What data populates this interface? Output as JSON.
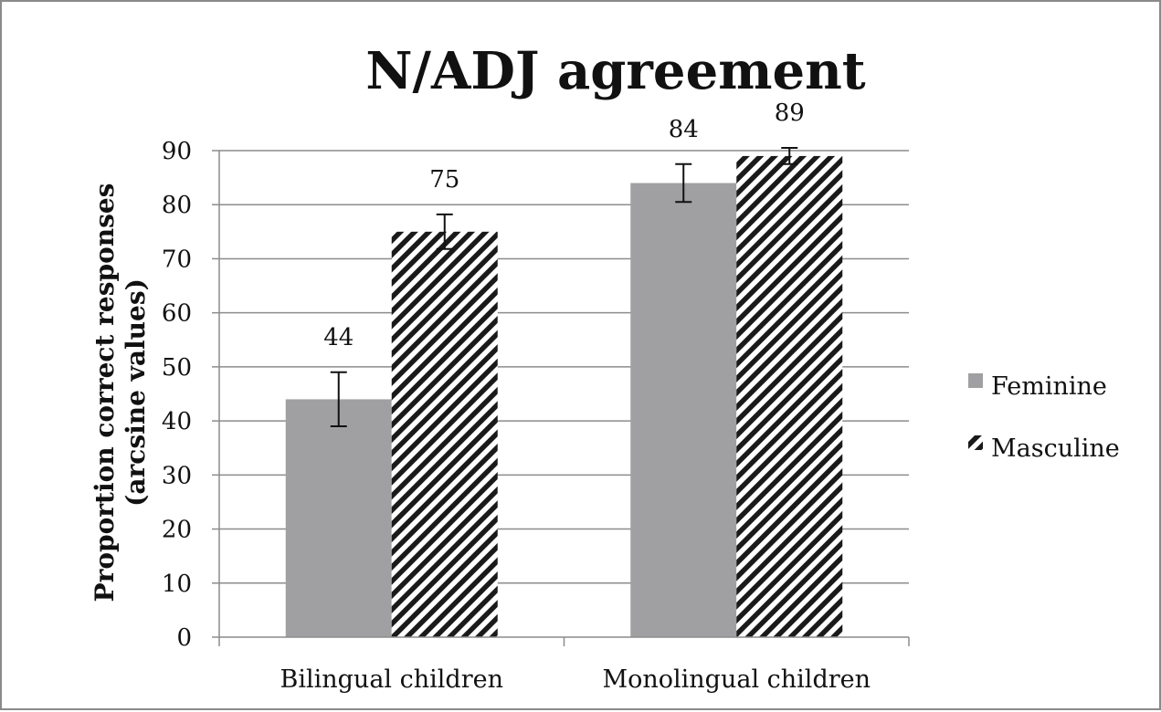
{
  "chart_data": {
    "type": "bar",
    "title": "N/ADJ agreement",
    "categories": [
      "Bilingual children",
      "Monolingual children"
    ],
    "series": [
      {
        "name": "Feminine",
        "values": [
          44,
          84
        ],
        "error": [
          5,
          3.5
        ],
        "data_labels": [
          "44",
          "84"
        ],
        "color": "#a0a0a2",
        "pattern": "solid"
      },
      {
        "name": "Masculine",
        "values": [
          75,
          89
        ],
        "error": [
          3.2,
          1.5
        ],
        "data_labels": [
          "75",
          "89"
        ],
        "color": "#1a1a1a",
        "pattern": "diagonal-stripes"
      }
    ],
    "yticks": [
      "0",
      "10",
      "20",
      "30",
      "40",
      "50",
      "60",
      "70",
      "80",
      "90"
    ],
    "ylabel_lines": [
      "Proportion correct responses",
      "(arcsine values)"
    ],
    "xlabel": "",
    "ylim": [
      0,
      90
    ],
    "grid": true,
    "legend_position": "right"
  }
}
